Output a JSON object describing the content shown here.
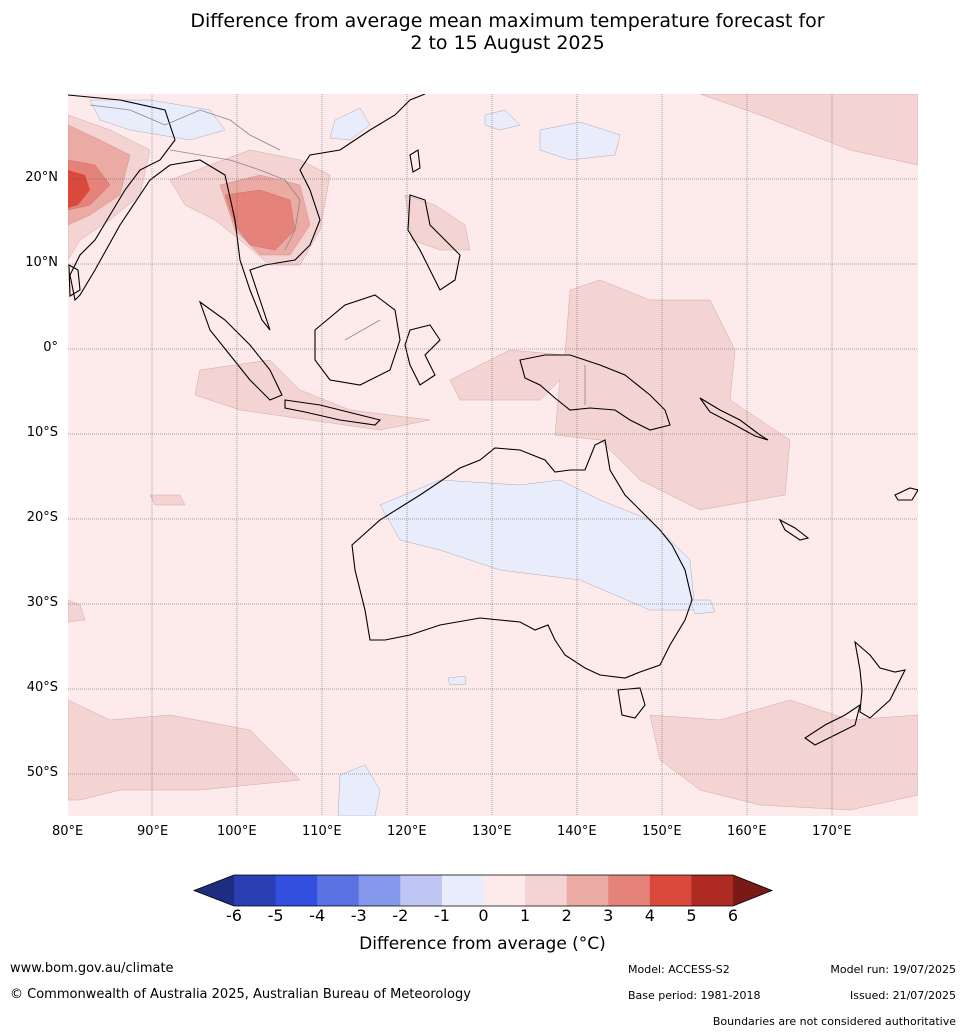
{
  "title_line1": "Difference from average mean maximum temperature forecast for",
  "title_line2": "2 to 15 August 2025",
  "lat_labels": [
    "20°N",
    "10°N",
    "0°",
    "10°S",
    "20°S",
    "30°S",
    "40°S",
    "50°S"
  ],
  "lon_labels": [
    "80°E",
    "90°E",
    "100°E",
    "110°E",
    "120°E",
    "130°E",
    "140°E",
    "150°E",
    "160°E",
    "170°E"
  ],
  "colorbar": {
    "ticks": [
      "-6",
      "-5",
      "-4",
      "-3",
      "-2",
      "-1",
      "0",
      "1",
      "2",
      "3",
      "4",
      "5",
      "6"
    ],
    "colors": [
      "#1f2d80",
      "#2a3fb3",
      "#324fe0",
      "#5a72e2",
      "#8597ea",
      "#bfc6f3",
      "#e8ecfb",
      "#fcebea",
      "#f4d3d3",
      "#ecaaa4",
      "#e5837a",
      "#d94a3d",
      "#ad2b22",
      "#7a1a16"
    ],
    "label": "Difference from average (°C)"
  },
  "footer": {
    "website": "www.bom.gov.au/climate",
    "copyright": "© Commonwealth of Australia 2025, Australian Bureau of Meteorology",
    "model": "Model: ACCESS-S2",
    "base_period": "Base period: 1981-2018",
    "model_run": "Model run: 19/07/2025",
    "issued": "Issued: 21/07/2025",
    "disclaimer": "Boundaries are not considered authoritative"
  }
}
